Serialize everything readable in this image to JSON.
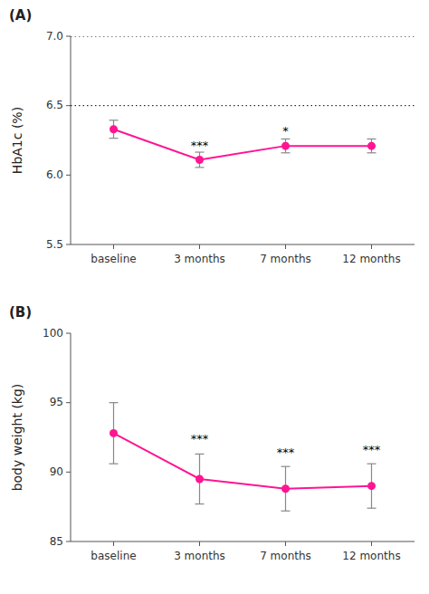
{
  "chart_data": [
    {
      "type": "line",
      "title": "(A)",
      "categories": [
        "baseline",
        "3 months",
        "7 months",
        "12 months"
      ],
      "values": [
        6.33,
        6.11,
        6.21,
        6.21
      ],
      "errors": [
        0.065,
        0.055,
        0.05,
        0.05
      ],
      "color": "#FF1493",
      "marker": "circle",
      "ylabel": "HbA1c (%)",
      "ylim": [
        5.5,
        7.0
      ],
      "yticks": [
        5.5,
        {
          "value": 6.0,
          "label": "6.0"
        },
        6.5,
        {
          "value": 7.0,
          "label": "7.0"
        }
      ],
      "hlines": [
        7.0,
        6.5
      ],
      "annotations": [
        {
          "text": "***",
          "x": "3 months",
          "y": 6.175
        },
        {
          "text": "*",
          "x": "7 months",
          "y": 6.275
        }
      ],
      "grid": false
    },
    {
      "type": "line",
      "title": "(B)",
      "categories": [
        "baseline",
        "3 months",
        "7 months",
        "12 months"
      ],
      "values": [
        92.8,
        89.5,
        88.8,
        89.0
      ],
      "errors": [
        2.2,
        1.8,
        1.6,
        1.6
      ],
      "color": "#FF1493",
      "marker": "circle",
      "ylabel": "body weight (kg)",
      "ylim": [
        85,
        100
      ],
      "yticks": [
        85,
        90,
        95,
        100
      ],
      "annotations": [
        {
          "text": "***",
          "x": "3 months",
          "y": 92.0
        },
        {
          "text": "***",
          "x": "7 months",
          "y": 91.0
        },
        {
          "text": "***",
          "x": "12 months",
          "y": 91.2
        }
      ],
      "grid": false
    }
  ]
}
